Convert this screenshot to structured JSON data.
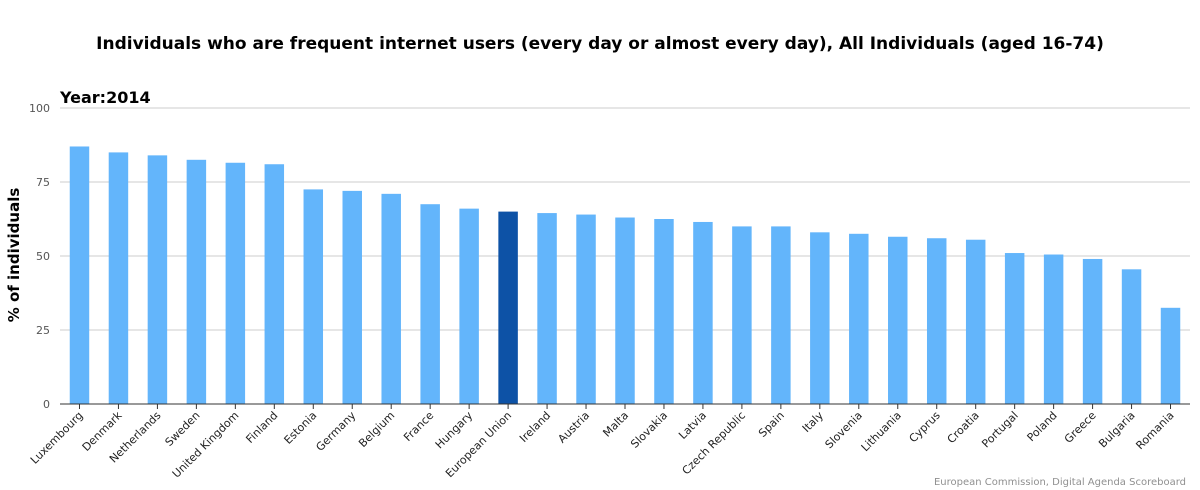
{
  "chart_data": {
    "type": "bar",
    "title": "Individuals who are frequent internet users (every day or almost every day), All Individuals (aged 16-74)",
    "year_label": "Year:",
    "year": "2014",
    "ylabel": "% of individuals",
    "xlabel": "",
    "ylim": [
      0,
      100
    ],
    "yticks": [
      "0",
      "25",
      "50",
      "75",
      "100"
    ],
    "grid": true,
    "credit": "European Commission, Digital Agenda Scoreboard",
    "colors": {
      "default": "#63b5fb",
      "highlight": "#0d52a6",
      "grid": "#cccccc",
      "axis": "#333333"
    },
    "highlight_category": "European Union",
    "categories": [
      "Luxembourg",
      "Denmark",
      "Netherlands",
      "Sweden",
      "United Kingdom",
      "Finland",
      "Estonia",
      "Germany",
      "Belgium",
      "France",
      "Hungary",
      "European Union",
      "Ireland",
      "Austria",
      "Malta",
      "Slovakia",
      "Latvia",
      "Czech Republic",
      "Spain",
      "Italy",
      "Slovenia",
      "Lithuania",
      "Cyprus",
      "Croatia",
      "Portugal",
      "Poland",
      "Greece",
      "Bulgaria",
      "Romania"
    ],
    "values": [
      87,
      85,
      84,
      82.5,
      81.5,
      81,
      72.5,
      72,
      71,
      67.5,
      66,
      65,
      64.5,
      64,
      63,
      62.5,
      61.5,
      60,
      60,
      58,
      57.5,
      56.5,
      56,
      55.5,
      51,
      50.5,
      49,
      45.5,
      32.5
    ]
  }
}
